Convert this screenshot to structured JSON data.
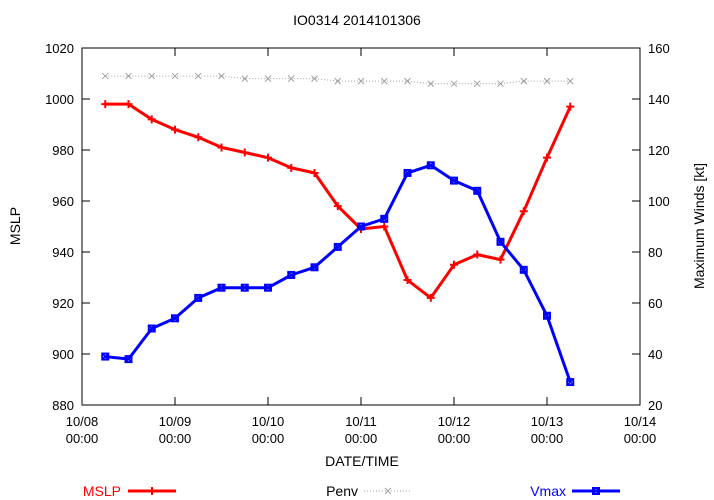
{
  "chart_data": {
    "type": "line",
    "title": "IO0314 2014101306",
    "xlabel": "DATE/TIME",
    "ylabel": "MSLP",
    "y2label": "Maximum Winds [kt]",
    "x_ticks": [
      {
        "day": 0,
        "line1": "10/08",
        "line2": "00:00"
      },
      {
        "day": 1,
        "line1": "10/09",
        "line2": "00:00"
      },
      {
        "day": 2,
        "line1": "10/10",
        "line2": "00:00"
      },
      {
        "day": 3,
        "line1": "10/11",
        "line2": "00:00"
      },
      {
        "day": 4,
        "line1": "10/12",
        "line2": "00:00"
      },
      {
        "day": 5,
        "line1": "10/13",
        "line2": "00:00"
      },
      {
        "day": 6,
        "line1": "10/14",
        "line2": "00:00"
      }
    ],
    "xlim": [
      0,
      6
    ],
    "ylim": [
      880,
      1020
    ],
    "y_ticks": [
      880,
      900,
      920,
      940,
      960,
      980,
      1000,
      1020
    ],
    "y2lim": [
      20,
      160
    ],
    "y2_ticks": [
      20,
      40,
      60,
      80,
      100,
      120,
      140,
      160
    ],
    "grid": false,
    "legend_position": "bottom",
    "x": [
      0.25,
      0.5,
      0.75,
      1.0,
      1.25,
      1.5,
      1.75,
      2.0,
      2.25,
      2.5,
      2.75,
      3.0,
      3.25,
      3.5,
      3.75,
      4.0,
      4.25,
      4.5,
      4.75,
      5.0,
      5.25
    ],
    "series": [
      {
        "name": "MSLP",
        "axis": "left",
        "color": "#ff0000",
        "marker": "plus",
        "values": [
          998,
          998,
          992,
          988,
          985,
          981,
          979,
          977,
          973,
          971,
          958,
          949,
          950,
          929,
          922,
          935,
          939,
          937,
          956,
          977,
          997
        ]
      },
      {
        "name": "Penv",
        "axis": "left",
        "color": "#a0a0a0",
        "marker": "x",
        "dotted": true,
        "values": [
          1009,
          1009,
          1009,
          1009,
          1009,
          1009,
          1008,
          1008,
          1008,
          1008,
          1007,
          1007,
          1007,
          1007,
          1006,
          1006,
          1006,
          1006,
          1007,
          1007,
          1007
        ]
      },
      {
        "name": "Vmax",
        "axis": "right",
        "color": "#0000ff",
        "marker": "box-x",
        "values": [
          39,
          38,
          50,
          54,
          62,
          66,
          66,
          66,
          71,
          74,
          82,
          90,
          93,
          111,
          114,
          108,
          104,
          84,
          73,
          55,
          29
        ]
      }
    ]
  }
}
